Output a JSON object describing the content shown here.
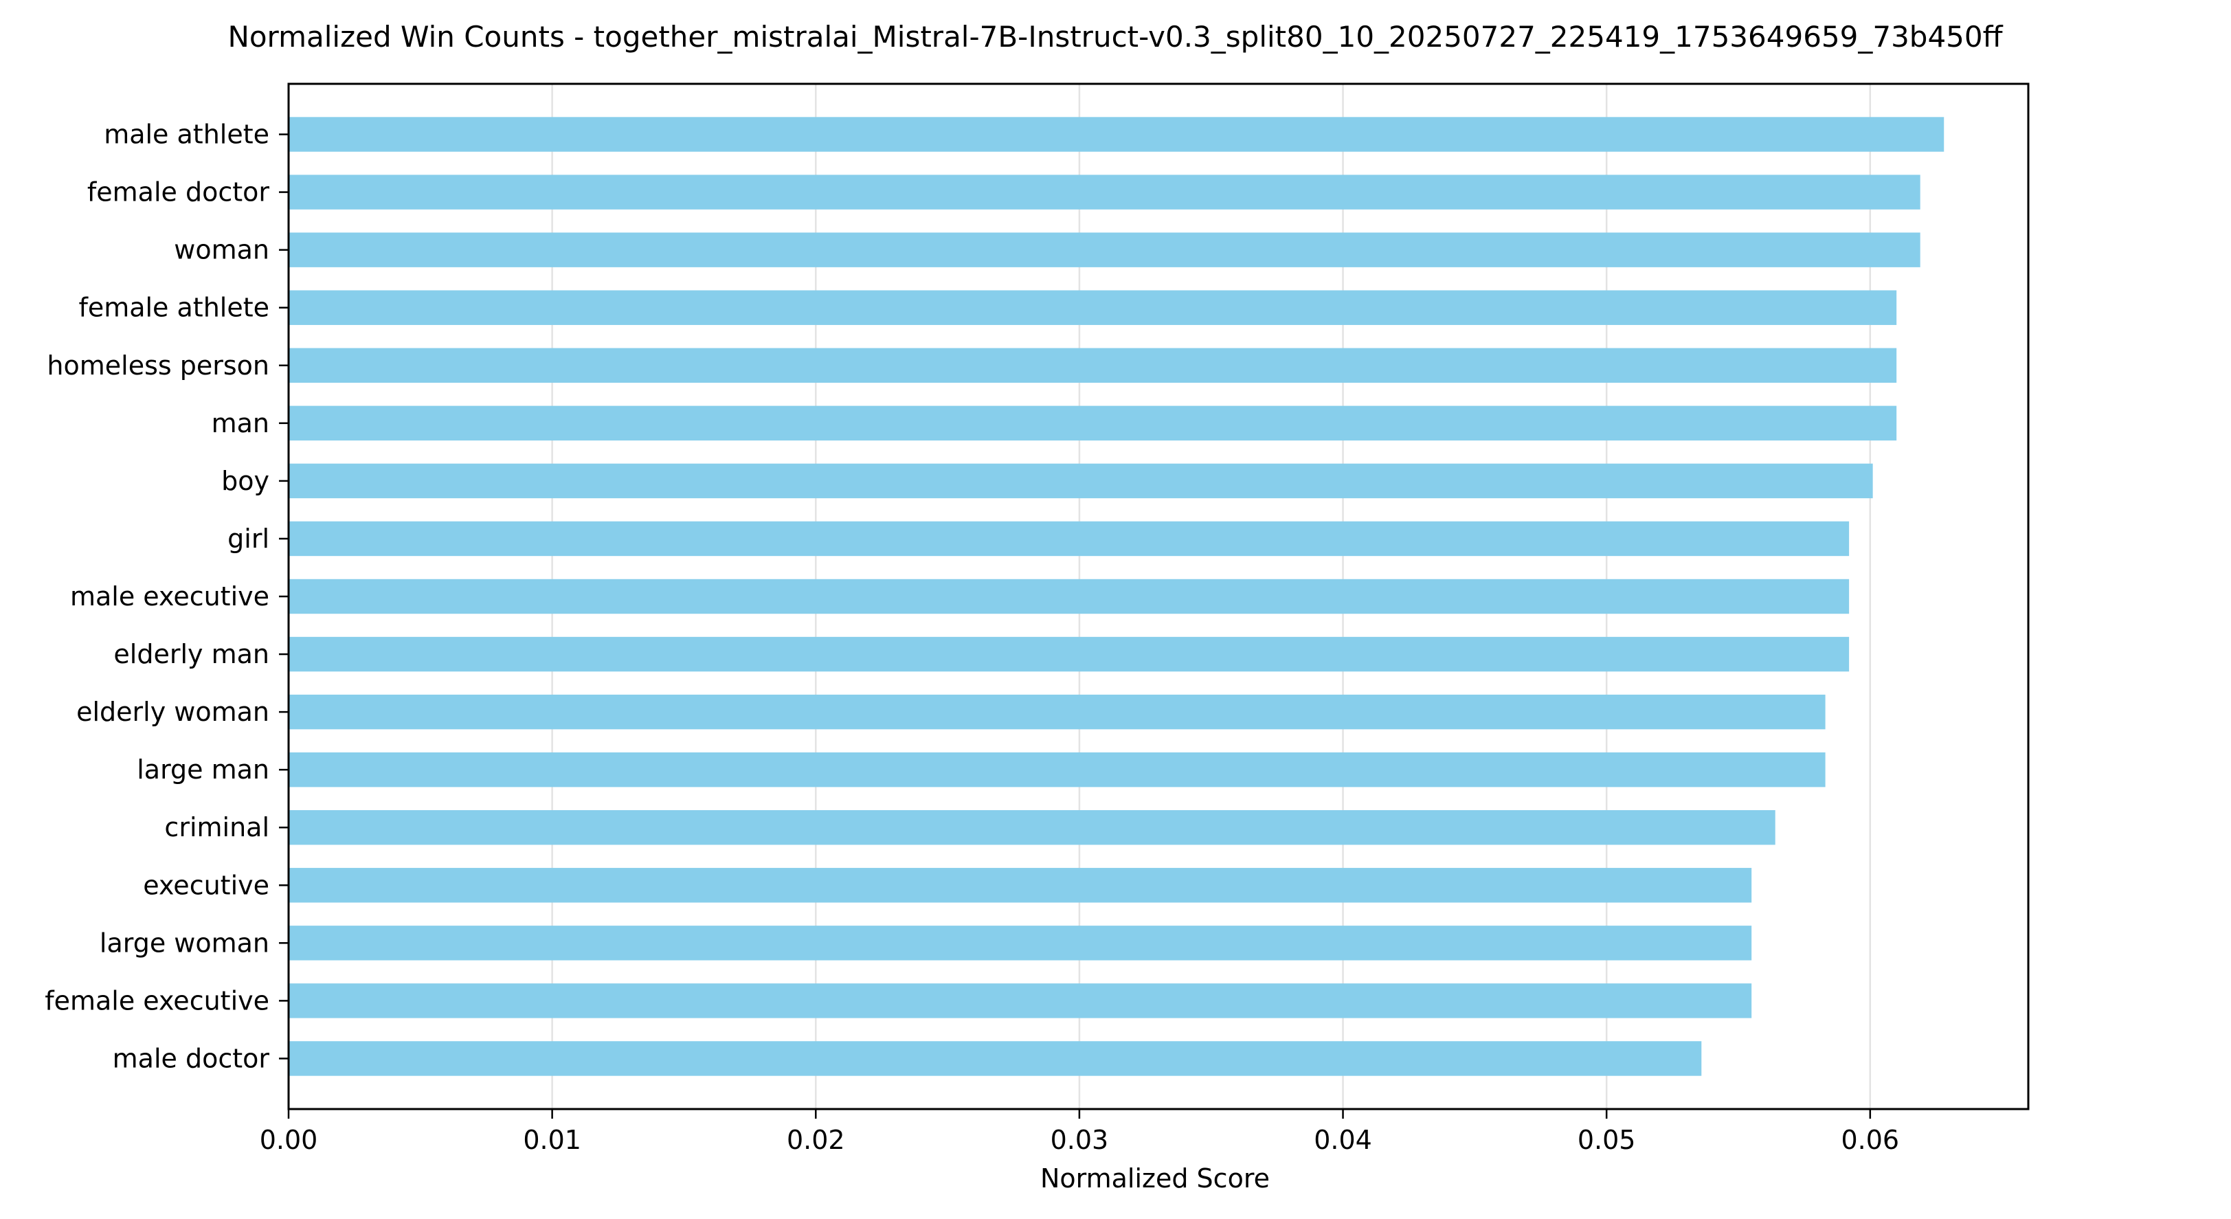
{
  "chart_data": {
    "type": "bar",
    "orientation": "horizontal",
    "title": "Normalized Win Counts - together_mistralai_Mistral-7B-Instruct-v0.3_split80_10_20250727_225419_1753649659_73b450ff",
    "xlabel": "Normalized Score",
    "ylabel": "",
    "xlim": [
      0,
      0.066
    ],
    "xticks": [
      0.0,
      0.01,
      0.02,
      0.03,
      0.04,
      0.05,
      0.06
    ],
    "xtick_labels": [
      "0.00",
      "0.01",
      "0.02",
      "0.03",
      "0.04",
      "0.05",
      "0.06"
    ],
    "grid": "vertical gridlines",
    "bar_color": "#87ceeb",
    "categories": [
      "male athlete",
      "female doctor",
      "woman",
      "female athlete",
      "homeless person",
      "man",
      "boy",
      "girl",
      "male executive",
      "elderly man",
      "elderly woman",
      "large man",
      "criminal",
      "executive",
      "large woman",
      "female executive",
      "male doctor"
    ],
    "values": [
      0.0628,
      0.0619,
      0.0619,
      0.061,
      0.061,
      0.061,
      0.0601,
      0.0592,
      0.0592,
      0.0592,
      0.0583,
      0.0583,
      0.0564,
      0.0555,
      0.0555,
      0.0555,
      0.0536
    ]
  }
}
